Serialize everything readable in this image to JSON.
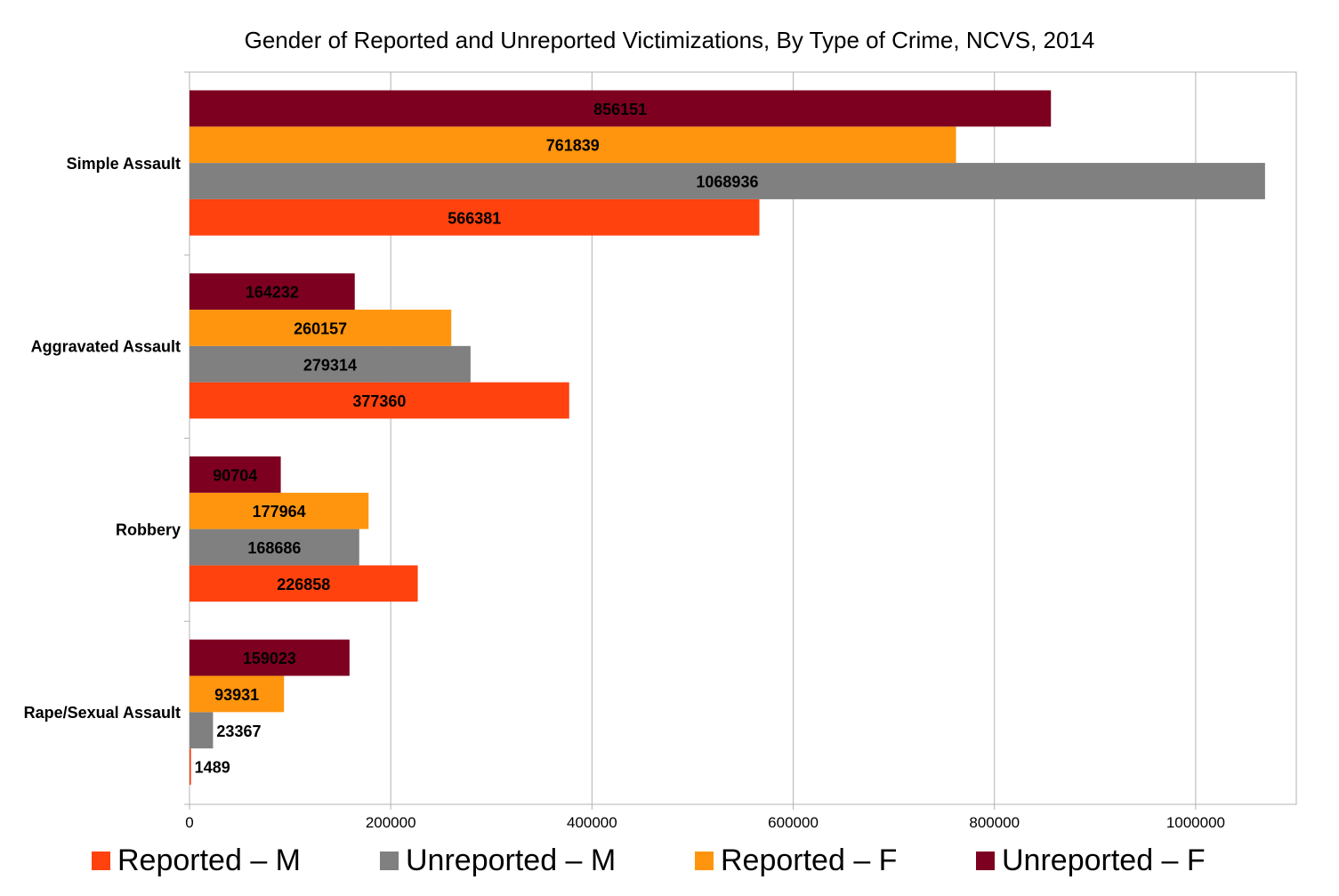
{
  "chart_data": {
    "type": "bar",
    "orientation": "horizontal",
    "title": "Gender of Reported and Unreported Victimizations, By Type of Crime, NCVS, 2014",
    "xlabel": "",
    "ylabel": "",
    "xlim": [
      0,
      1100000
    ],
    "x_ticks": [
      "0",
      "200000",
      "400000",
      "600000",
      "800000",
      "1000000"
    ],
    "x_tick_values": [
      0,
      200000,
      400000,
      600000,
      800000,
      1000000
    ],
    "categories": [
      "Simple Assault",
      "Aggravated Assault",
      "Robbery",
      "Rape/Sexual Assault"
    ],
    "series": [
      {
        "name": "Reported – M",
        "color": "#ff420e",
        "values": [
          566381,
          377360,
          226858,
          1489
        ]
      },
      {
        "name": "Unreported – M",
        "color": "#808080",
        "values": [
          1068936,
          279314,
          168686,
          23367
        ]
      },
      {
        "name": "Reported – F",
        "color": "#ff950e",
        "values": [
          761839,
          260157,
          177964,
          93931
        ]
      },
      {
        "name": "Unreported – F",
        "color": "#7e0021",
        "values": [
          856151,
          164232,
          90704,
          159023
        ]
      }
    ],
    "grid": true,
    "legend_position": "bottom",
    "data_labels": true
  }
}
